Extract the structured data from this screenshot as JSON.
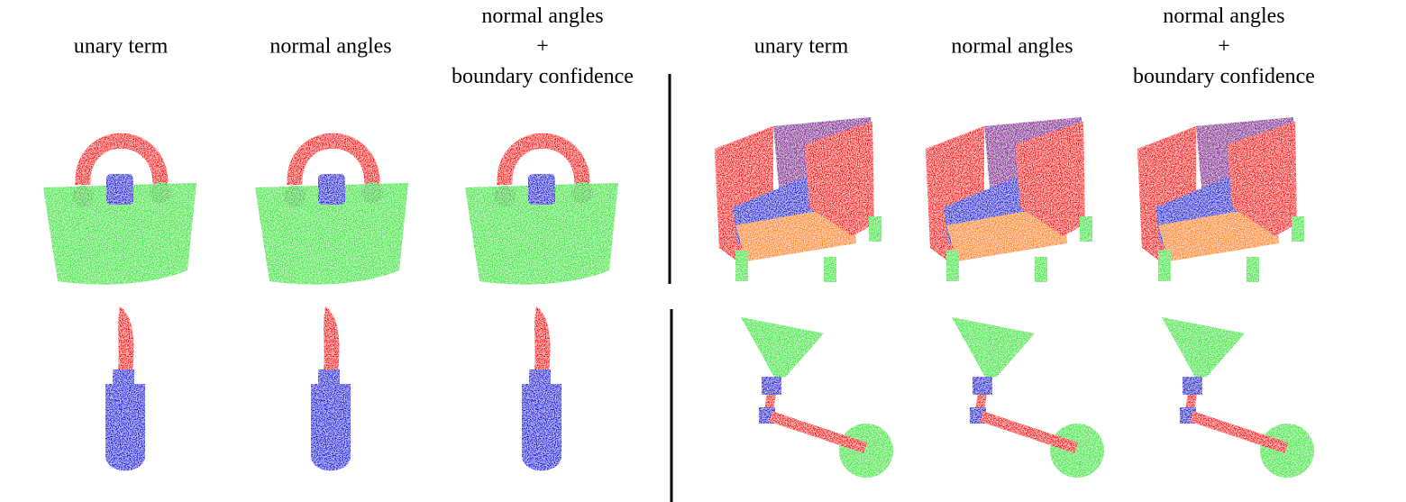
{
  "header_groups": [
    {
      "columns": [
        {
          "lines": [
            "unary term"
          ]
        },
        {
          "lines": [
            "normal angles"
          ]
        },
        {
          "lines": [
            "normal angles",
            "+",
            "boundary confidence"
          ]
        }
      ]
    },
    {
      "columns": [
        {
          "lines": [
            "unary term"
          ]
        },
        {
          "lines": [
            "normal angles"
          ]
        },
        {
          "lines": [
            "normal angles",
            "+",
            "boundary confidence"
          ]
        }
      ]
    }
  ]
}
